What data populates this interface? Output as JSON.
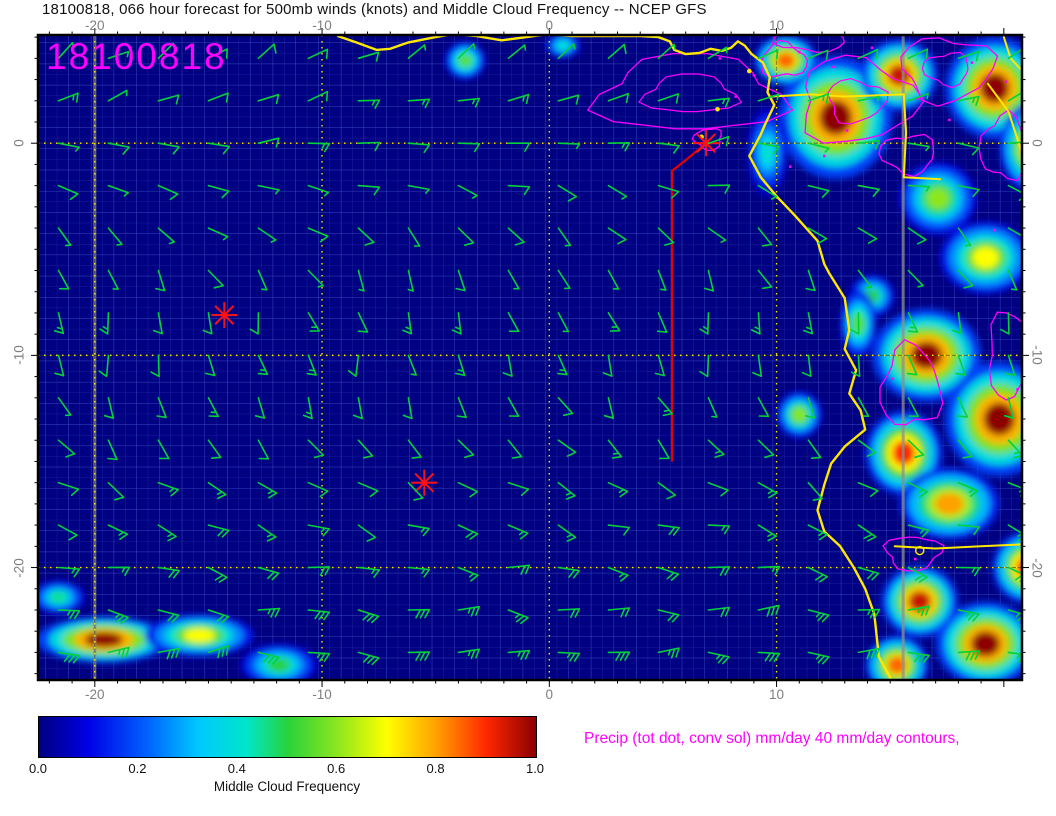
{
  "header": {
    "title": "18100818, 066 hour forecast for 500mb winds (knots) and Middle Cloud Frequency -- NCEP GFS"
  },
  "map_overlay": {
    "datestamp": "18100818",
    "datestamp_color": "#ff00ff"
  },
  "footer": {
    "precip_note": "Precip (tot dot, conv sol) mm/day 40 mm/day contours,",
    "precip_note_color": "#ff00ff"
  },
  "chart_data": {
    "type": "heatmap",
    "title": "18100818, 066 hour forecast for 500mb winds (knots) and Middle Cloud Frequency -- NCEP GFS",
    "model": "NCEP GFS",
    "run": "18100818",
    "forecast_hour": "066",
    "field_shaded": "Middle Cloud Frequency",
    "field_vectors": "500mb winds (knots)",
    "field_contours": "Precip (tot dot, conv sol) mm/day 40 mm/day contours",
    "x_axis": {
      "ticks": [
        -20,
        -10,
        0,
        10
      ],
      "tick_labels": [
        "-20",
        "-10",
        "0",
        "10"
      ],
      "range": [
        -22.5,
        20.8
      ]
    },
    "y_axis": {
      "ticks": [
        0,
        -10,
        -20
      ],
      "tick_labels": [
        "0",
        "-10",
        "-20"
      ],
      "range": [
        -25.3,
        5.1
      ]
    },
    "grid": {
      "major_deg": 10,
      "style": "yellow dotted"
    },
    "colorbar": {
      "label": "Middle Cloud Frequency",
      "min": 0,
      "max": 1,
      "tick_values": [
        0,
        0.2,
        0.4,
        0.6,
        0.8,
        1
      ],
      "tick_labels": [
        "0.0",
        "0.2",
        "0.4",
        "0.6",
        "0.8",
        "1.0"
      ],
      "stops": [
        [
          0,
          "#000082"
        ],
        [
          0.1,
          "#0000e6"
        ],
        [
          0.22,
          "#0064ff"
        ],
        [
          0.32,
          "#00c8ff"
        ],
        [
          0.42,
          "#00e6c8"
        ],
        [
          0.5,
          "#28d23c"
        ],
        [
          0.6,
          "#8ce61e"
        ],
        [
          0.7,
          "#ffff00"
        ],
        [
          0.8,
          "#ffa000"
        ],
        [
          0.9,
          "#ff2800"
        ],
        [
          1,
          "#8c0000"
        ]
      ]
    },
    "colors": {
      "background": "#000082",
      "grid_minor": "#2b3cae",
      "grid_deg": "#3a4ec2",
      "graticule": "#ffe800",
      "coast": "#ffe800",
      "precip": "#ff00ff",
      "track": "#e60000",
      "marker": "#ff1414",
      "wind_barb": "#00d23c",
      "frame": "#000000",
      "axis_text": "#7f7f7f",
      "swath": "#8f8f8f"
    },
    "coastline": [
      [
        -9.3,
        5.05
      ],
      [
        -8.5,
        4.75
      ],
      [
        -7.6,
        4.4
      ],
      [
        -7.0,
        4.45
      ],
      [
        -6.2,
        4.75
      ],
      [
        -5.0,
        5.0
      ],
      [
        -4.2,
        5.15
      ],
      [
        -3.2,
        5.05
      ],
      [
        -2.1,
        4.85
      ],
      [
        -1.0,
        5.0
      ],
      [
        0.0,
        5.15
      ],
      [
        1.0,
        5.05
      ],
      [
        2.0,
        5.05
      ],
      [
        3.0,
        5.05
      ],
      [
        4.0,
        5.05
      ],
      [
        4.8,
        5.0
      ],
      [
        5.3,
        4.8
      ],
      [
        5.5,
        4.4
      ],
      [
        6.0,
        4.2
      ],
      [
        6.6,
        4.25
      ],
      [
        7.1,
        4.45
      ],
      [
        7.6,
        4.35
      ],
      [
        8.0,
        4.5
      ],
      [
        8.3,
        4.8
      ],
      [
        8.6,
        4.6
      ],
      [
        8.9,
        4.2
      ],
      [
        9.4,
        3.8
      ],
      [
        9.7,
        3.1
      ],
      [
        9.6,
        2.4
      ],
      [
        9.9,
        1.8
      ],
      [
        9.5,
        0.9
      ],
      [
        9.3,
        0.4
      ],
      [
        8.8,
        -0.6
      ],
      [
        9.3,
        -1.6
      ],
      [
        10.0,
        -2.5
      ],
      [
        10.8,
        -3.4
      ],
      [
        11.8,
        -4.6
      ],
      [
        12.1,
        -5.7
      ],
      [
        12.3,
        -6.1
      ],
      [
        13.0,
        -7.3
      ],
      [
        13.2,
        -8.8
      ],
      [
        13.0,
        -9.7
      ],
      [
        13.5,
        -10.7
      ],
      [
        13.2,
        -11.8
      ],
      [
        13.7,
        -12.6
      ],
      [
        13.9,
        -13.5
      ],
      [
        13.0,
        -14.3
      ],
      [
        12.4,
        -15.1
      ],
      [
        12.1,
        -16.1
      ],
      [
        11.8,
        -17.3
      ],
      [
        12.1,
        -18.3
      ],
      [
        12.8,
        -19.0
      ],
      [
        13.4,
        -20.0
      ],
      [
        13.9,
        -21.0
      ],
      [
        14.3,
        -22.2
      ],
      [
        14.4,
        -23.2
      ],
      [
        14.5,
        -24.2
      ],
      [
        15.1,
        -25.4
      ]
    ],
    "borders": [
      [
        [
          9.8,
          2.2
        ],
        [
          11.5,
          2.3
        ],
        [
          13.0,
          2.2
        ],
        [
          15.6,
          2.3
        ]
      ],
      [
        [
          15.6,
          2.3
        ],
        [
          15.7,
          0.5
        ],
        [
          15.6,
          -1.6
        ]
      ],
      [
        [
          15.6,
          -1.6
        ],
        [
          17.2,
          -1.7
        ]
      ],
      [
        [
          15.2,
          -19.0
        ],
        [
          17.0,
          -19.1
        ],
        [
          19.0,
          -19.0
        ],
        [
          21.0,
          -18.9
        ]
      ],
      [
        [
          20.0,
          5.0
        ],
        [
          20.3,
          4.0
        ],
        [
          21.0,
          3.2
        ]
      ],
      [
        [
          19.3,
          2.8
        ],
        [
          20.2,
          1.5
        ],
        [
          20.6,
          0.2
        ],
        [
          20.9,
          -0.8
        ]
      ]
    ],
    "islands": [
      [
        8.8,
        3.4
      ],
      [
        7.4,
        1.6
      ],
      [
        6.7,
        0.3
      ]
    ],
    "lakes": [
      [
        16.3,
        -19.2
      ]
    ],
    "swath_lons": [
      -20,
      15.57
    ],
    "cloud_regions": [
      [
        12.6,
        1.2,
        2.4,
        2.8,
        1.0
      ],
      [
        10.4,
        3.9,
        1.3,
        1.1,
        0.85
      ],
      [
        15.4,
        3.2,
        1.6,
        1.6,
        0.95
      ],
      [
        19.6,
        2.6,
        2.1,
        2.3,
        1.0
      ],
      [
        21.2,
        -0.2,
        1.3,
        2.0,
        0.8
      ],
      [
        17.1,
        -2.6,
        1.6,
        1.6,
        0.6
      ],
      [
        19.2,
        -5.4,
        1.9,
        1.6,
        0.7
      ],
      [
        14.2,
        -7.2,
        0.9,
        0.9,
        0.5
      ],
      [
        13.6,
        -8.5,
        0.7,
        1.5,
        0.55
      ],
      [
        16.6,
        -10.0,
        2.3,
        2.1,
        1.0
      ],
      [
        19.8,
        -13.0,
        2.3,
        2.6,
        1.0
      ],
      [
        15.6,
        -14.6,
        1.6,
        1.9,
        0.9
      ],
      [
        17.6,
        -17.0,
        2.1,
        1.6,
        0.8
      ],
      [
        16.3,
        -21.6,
        1.6,
        1.6,
        0.95
      ],
      [
        19.2,
        -23.6,
        2.1,
        1.9,
        1.0
      ],
      [
        15.3,
        -24.6,
        1.3,
        1.3,
        0.85
      ],
      [
        21.0,
        -20.0,
        1.4,
        1.6,
        0.9
      ],
      [
        -19.6,
        -23.4,
        2.9,
        1.0,
        1.0
      ],
      [
        -15.4,
        -23.2,
        2.3,
        0.9,
        0.7
      ],
      [
        -11.9,
        -24.6,
        1.6,
        0.9,
        0.5
      ],
      [
        -21.6,
        -21.4,
        1.1,
        0.7,
        0.45
      ],
      [
        -3.7,
        3.9,
        0.8,
        0.8,
        0.55
      ],
      [
        0.6,
        4.6,
        0.7,
        0.5,
        0.4
      ],
      [
        9.6,
        -0.4,
        0.8,
        2.0,
        0.4
      ],
      [
        11.0,
        -12.8,
        0.9,
        1.0,
        0.6
      ]
    ],
    "precip_contours": [
      [
        6.2,
        2.3,
        4.0,
        1.8
      ],
      [
        13.5,
        2.0,
        2.5,
        2.0
      ],
      [
        17.5,
        3.5,
        2.0,
        1.5
      ],
      [
        15.8,
        -0.5,
        1.2,
        0.9
      ],
      [
        20.0,
        -0.2,
        1.0,
        1.5
      ],
      [
        15.9,
        -11.5,
        1.3,
        1.9
      ],
      [
        20.3,
        -10.0,
        1.0,
        2.0
      ],
      [
        16.0,
        -19.3,
        1.2,
        0.8
      ],
      [
        7.0,
        0.2,
        0.6,
        0.5
      ],
      [
        11.5,
        5.0,
        1.5,
        0.7
      ],
      [
        10.3,
        3.9,
        1.0,
        0.8
      ]
    ],
    "precip_dots": [
      [
        7.5,
        4.0
      ],
      [
        9.0,
        3.2
      ],
      [
        11.0,
        4.3
      ],
      [
        12.5,
        3.6
      ],
      [
        14.2,
        4.5
      ],
      [
        16.2,
        2.1
      ],
      [
        17.6,
        1.1
      ],
      [
        18.6,
        3.8
      ],
      [
        20.1,
        2.9
      ],
      [
        13.1,
        0.6
      ],
      [
        10.6,
        -1.1
      ],
      [
        15.1,
        -11.1
      ],
      [
        20.6,
        -11.6
      ],
      [
        16.1,
        -19.6
      ],
      [
        12.1,
        -0.6
      ],
      [
        19.6,
        -4.1
      ],
      [
        20.9,
        -13.6
      ],
      [
        8.2,
        2.2
      ]
    ],
    "storm_track": {
      "points": [
        [
          6.9,
          0.0
        ],
        [
          6.0,
          -0.8
        ],
        [
          5.4,
          -1.3
        ],
        [
          5.4,
          -15.0
        ]
      ]
    },
    "markers": [
      [
        6.9,
        0.0
      ],
      [
        -14.3,
        -8.1
      ],
      [
        -5.5,
        -16.0
      ]
    ],
    "wind_rows": [
      [
        4,
        60,
        8
      ],
      [
        2,
        75,
        10
      ],
      [
        0,
        90,
        10
      ],
      [
        -2,
        105,
        8
      ],
      [
        -4,
        130,
        7
      ],
      [
        -6,
        150,
        8
      ],
      [
        -8,
        165,
        10
      ],
      [
        -10,
        170,
        10
      ],
      [
        -12,
        155,
        10
      ],
      [
        -14,
        140,
        12
      ],
      [
        -16,
        125,
        12
      ],
      [
        -18,
        110,
        15
      ],
      [
        -20,
        100,
        18
      ],
      [
        -22,
        95,
        25
      ],
      [
        -24,
        90,
        28
      ]
    ],
    "wind_cols": {
      "start": -21.6,
      "step": 2.2,
      "count": 20
    }
  }
}
